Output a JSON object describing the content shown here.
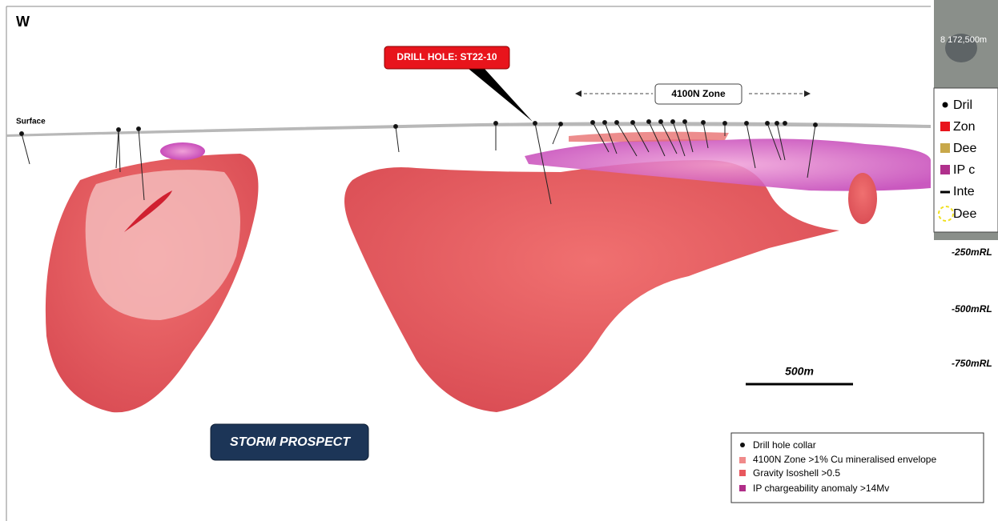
{
  "header": {
    "direction": "W"
  },
  "labels": {
    "surface": "Surface",
    "drill_hole": "DRILL HOLE: ST22-10",
    "zone": "4100N Zone",
    "scale_bar": "500m",
    "prospect": "STORM PROSPECT"
  },
  "legend": {
    "items": [
      "Drill hole collar",
      "4100N Zone >1% Cu mineralised envelope",
      "Gravity Isoshell >0.5",
      "IP chargeability anomaly >14Mv"
    ]
  },
  "inset": {
    "coordinate": "8 172,500m",
    "legend": [
      "Dril",
      "Zon",
      "Dee",
      "IP c",
      "Inte",
      "Dee"
    ]
  },
  "depth_labels": [
    "-250mRL",
    "-500mRL",
    "-750mRL"
  ]
}
